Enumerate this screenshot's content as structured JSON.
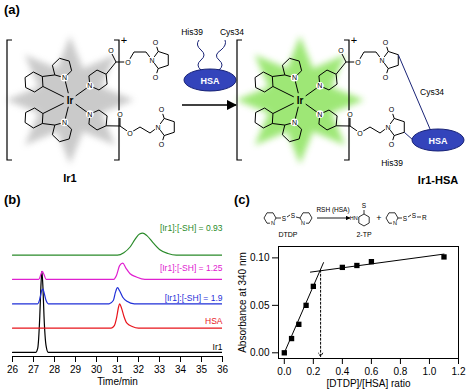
{
  "diagram": {
    "panel": "(a)",
    "reactant": "Ir1",
    "product": "Ir1-HSA",
    "charge": "+",
    "protein": "HSA",
    "residues": [
      "His39",
      "Cys34"
    ],
    "atoms": {
      "metal": "Ir",
      "nitrogen": "N",
      "oxygen": "O"
    }
  },
  "chart_data": [
    {
      "type": "line",
      "panel": "(b)",
      "x_label": "Time/min",
      "xlim": [
        26,
        36
      ],
      "xticks": [
        26,
        27,
        28,
        29,
        30,
        31,
        32,
        33,
        34,
        35,
        36
      ],
      "tick_labels": "x",
      "series": [
        {
          "name": "Ir1",
          "color": "#000000",
          "x": [
            26,
            27.1,
            27.2,
            27.3,
            27.35,
            27.4,
            27.45,
            27.5,
            27.6,
            27.7,
            36
          ],
          "values": [
            0,
            0,
            0.05,
            0.45,
            0.8,
            1.0,
            0.8,
            0.45,
            0.08,
            0,
            0
          ]
        },
        {
          "name": "HSA",
          "color": "#e8141b",
          "x": [
            26,
            30.7,
            30.85,
            30.95,
            31.05,
            31.1,
            31.2,
            31.3,
            31.45,
            31.7,
            32,
            36
          ],
          "values": [
            0,
            0,
            0.03,
            0.12,
            0.26,
            0.3,
            0.24,
            0.15,
            0.06,
            0.02,
            0,
            0
          ]
        },
        {
          "name": "[Ir1]:[-SH] = 1.9",
          "color": "#1f2fd8",
          "x": [
            26,
            27.2,
            27.3,
            27.4,
            27.45,
            27.5,
            27.6,
            27.7,
            30.6,
            30.8,
            30.9,
            31.0,
            31.1,
            31.25,
            31.45,
            31.8,
            36
          ],
          "values": [
            0,
            0,
            0.06,
            0.17,
            0.18,
            0.14,
            0.04,
            0,
            0,
            0.04,
            0.14,
            0.2,
            0.16,
            0.08,
            0.03,
            0,
            0
          ]
        },
        {
          "name": "[Ir1]:[-SH] = 1.25",
          "color": "#e020d0",
          "x": [
            26,
            27.25,
            27.35,
            27.42,
            27.5,
            27.6,
            30.8,
            30.95,
            31.1,
            31.25,
            31.4,
            31.6,
            31.9,
            32.3,
            36
          ],
          "values": [
            0,
            0,
            0.06,
            0.1,
            0.06,
            0,
            0,
            0.05,
            0.17,
            0.2,
            0.14,
            0.07,
            0.03,
            0,
            0
          ]
        },
        {
          "name": "[Ir1]:[-SH] = 0.93",
          "color": "#2a8a2a",
          "x": [
            26,
            31.0,
            31.3,
            31.6,
            31.85,
            32.05,
            32.2,
            32.4,
            32.7,
            33.0,
            33.4,
            33.8,
            36
          ],
          "values": [
            0,
            0,
            0.03,
            0.1,
            0.2,
            0.26,
            0.27,
            0.24,
            0.15,
            0.07,
            0.02,
            0,
            0
          ]
        }
      ]
    },
    {
      "type": "scatter",
      "panel": "(c)",
      "x_label": "[DTDP]/[HSA] ratio",
      "y_label": "Absorbance at 340 nm",
      "xlim": [
        -0.04,
        1.2
      ],
      "ylim": [
        -0.006,
        0.112
      ],
      "xticks": [
        {
          "value": 0,
          "label": "0.0"
        },
        {
          "value": 0.2,
          "label": "0.2"
        },
        {
          "value": 0.4,
          "label": "0.4"
        },
        {
          "value": 0.6,
          "label": "0.6"
        },
        {
          "value": 0.8,
          "label": "0.8"
        },
        {
          "value": 1.0,
          "label": "1.0"
        },
        {
          "value": 1.2,
          "label": "1.2"
        }
      ],
      "yticks": [
        {
          "value": 0,
          "label": "0.00"
        },
        {
          "value": 0.05,
          "label": "0.05"
        },
        {
          "value": 0.1,
          "label": "0.10"
        }
      ],
      "series": [
        {
          "type": "scatter",
          "marker": "square",
          "color": "#000000",
          "x": [
            0,
            0.05,
            0.1,
            0.15,
            0.2,
            0.4,
            0.5,
            0.6,
            1.1
          ],
          "values": [
            0,
            0.015,
            0.03,
            0.05,
            0.07,
            0.09,
            0.092,
            0.096,
            0.101
          ]
        },
        {
          "type": "line",
          "line_style": "solid",
          "color": "#000000",
          "x": [
            0,
            0.27
          ],
          "values": [
            0,
            0.095
          ]
        },
        {
          "type": "line",
          "line_style": "solid",
          "color": "#000000",
          "x": [
            0.18,
            1.1
          ],
          "values": [
            0.085,
            0.104
          ]
        },
        {
          "type": "line",
          "line_style": "dotted",
          "marker": "arrow",
          "color": "#000000",
          "x": [
            0.25,
            0.25
          ],
          "values": [
            0.087,
            -0.004
          ]
        }
      ],
      "inset": {
        "reactant": "DTDP",
        "reagent": "RSH (HSA)",
        "product": "2-TP",
        "plus": "+",
        "atoms": {
          "sulfur": "S",
          "nitrogen": "N",
          "imine": "HN",
          "residue": "R"
        }
      }
    }
  ]
}
